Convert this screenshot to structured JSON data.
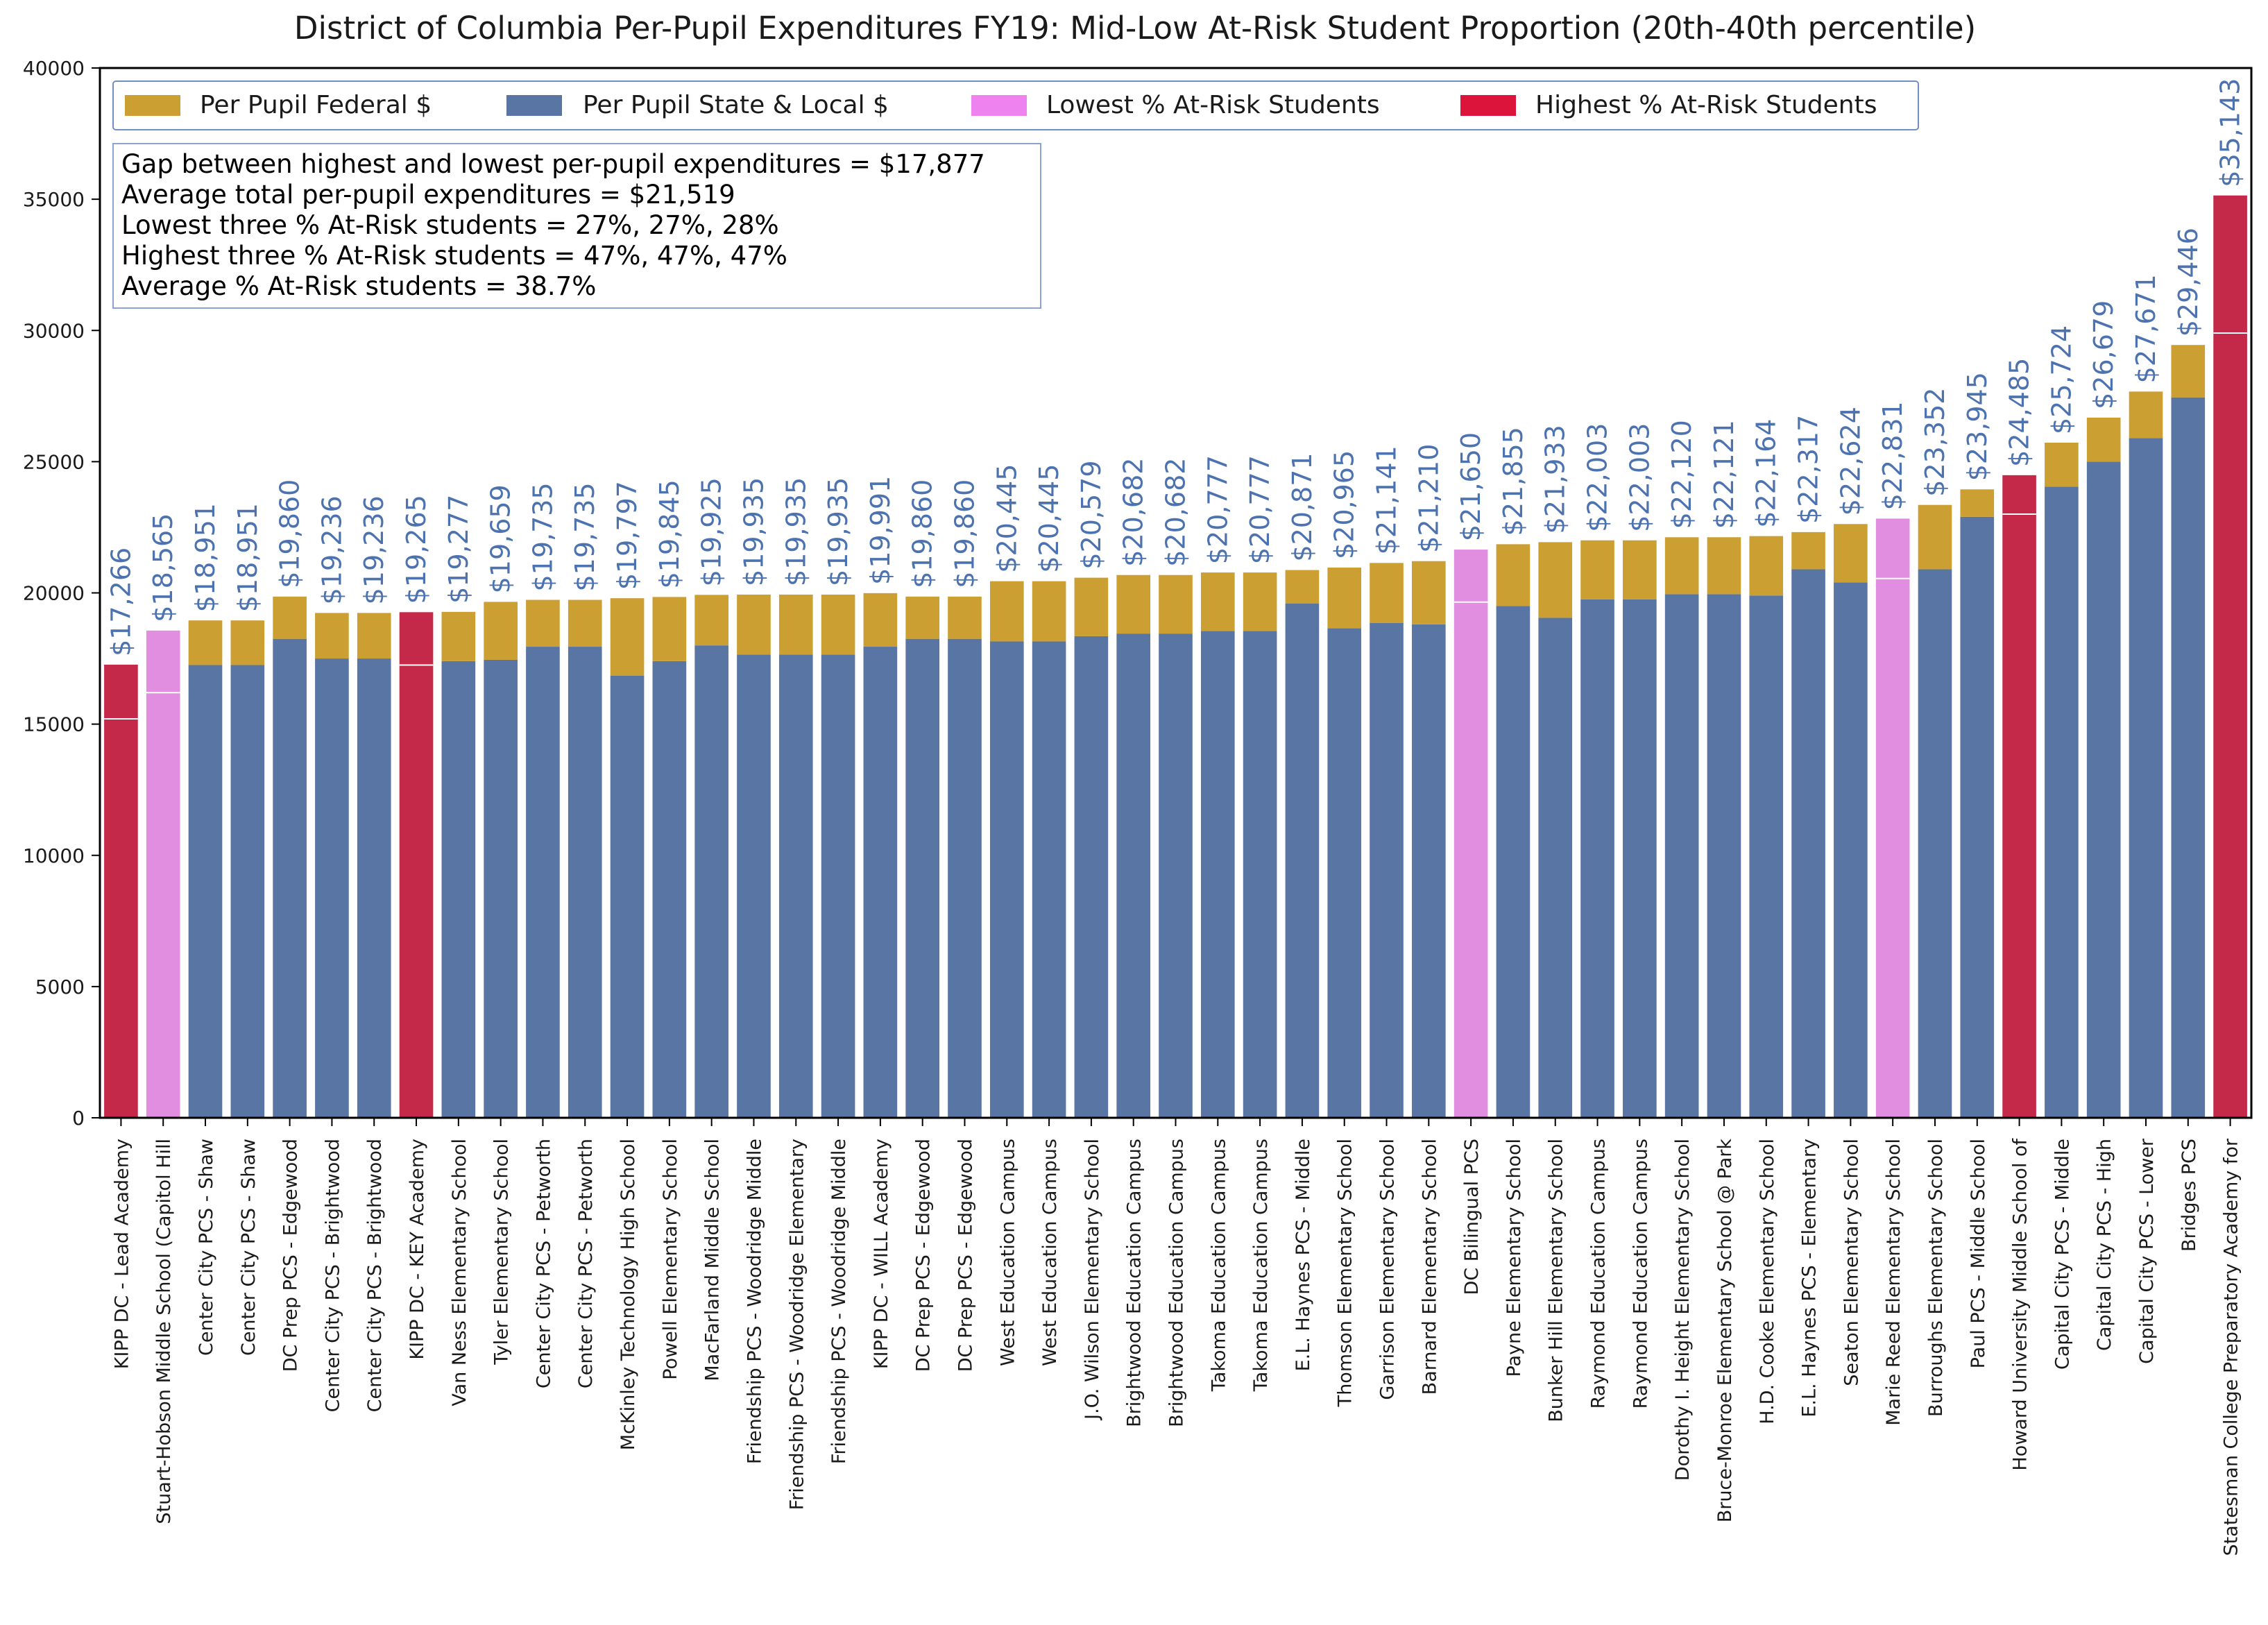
{
  "colors": {
    "federal": "#cc9f33",
    "state_local": "#5975a4",
    "lowest_at_risk": "#e28ee0",
    "highest_at_risk": "#c4294a",
    "legend_lowest_swatch": "#ee82ee",
    "legend_highest_swatch": "#dc143c",
    "total_label": "#4c72b0",
    "axis": "#000000",
    "box_border": "#6f8fc0"
  },
  "chart_data": {
    "type": "bar",
    "stacked": true,
    "title": "District of Columbia Per-Pupil Expenditures FY19: Mid-Low At-Risk Student Proportion (20th-40th percentile)",
    "xlabel": "",
    "ylabel": "",
    "ylim": [
      0,
      40000
    ],
    "yticks": [
      "0",
      "5000",
      "10000",
      "15000",
      "20000",
      "25000",
      "30000",
      "35000",
      "40000"
    ],
    "grid": false,
    "legend": {
      "position": "top-left",
      "entries": [
        "Per Pupil Federal $",
        "Per Pupil State & Local $",
        "Lowest % At-Risk Students",
        "Highest % At-Risk Students"
      ]
    },
    "annotation_lines": [
      "Gap between highest and lowest per-pupil expenditures = $17,877",
      "Average total per-pupil expenditures = $21,519",
      "Lowest three % At-Risk students = 27%, 27%, 28%",
      "Highest three % At-Risk students = 47%, 47%, 47%",
      "Average % At-Risk students = 38.7%"
    ],
    "categories": [
      "KIPP DC - Lead Academy",
      "Stuart-Hobson Middle School (Capitol Hill",
      "Center City PCS - Shaw",
      "Center City PCS - Shaw",
      "DC Prep PCS - Edgewood",
      "Center City PCS - Brightwood",
      "Center City PCS - Brightwood",
      "KIPP DC - KEY Academy",
      "Van Ness Elementary School",
      "Tyler Elementary School",
      "Center City PCS - Petworth",
      "Center City PCS - Petworth",
      "McKinley Technology High School",
      "Powell Elementary School",
      "MacFarland Middle School",
      "Friendship PCS - Woodridge Middle",
      "Friendship PCS - Woodridge Elementary",
      "Friendship PCS - Woodridge Middle",
      "KIPP DC - WILL Academy",
      "DC Prep PCS - Edgewood",
      "DC Prep PCS - Edgewood",
      "West Education Campus",
      "West Education Campus",
      "J.O. Wilson Elementary School",
      "Brightwood Education Campus",
      "Brightwood Education Campus",
      "Takoma Education Campus",
      "Takoma Education Campus",
      "E.L. Haynes PCS - Middle",
      "Thomson Elementary School",
      "Garrison Elementary School",
      "Barnard Elementary School",
      "DC Bilingual PCS",
      "Payne Elementary School",
      "Bunker Hill Elementary School",
      "Raymond Education Campus",
      "Raymond Education Campus",
      "Dorothy I. Height Elementary School",
      "Bruce-Monroe Elementary School @ Park",
      "H.D. Cooke Elementary School",
      "E.L. Haynes PCS - Elementary",
      "Seaton Elementary School",
      "Marie Reed Elementary School",
      "Burroughs Elementary School",
      "Paul PCS - Middle School",
      "Howard University Middle School of",
      "Capital City PCS - Middle",
      "Capital City PCS - High",
      "Capital City PCS - Lower",
      "Bridges PCS",
      "Statesman College Preparatory Academy for"
    ],
    "series": [
      {
        "name": "Per Pupil State & Local $",
        "values": [
          15200,
          16200,
          17250,
          17250,
          18250,
          17500,
          17500,
          17250,
          17400,
          17450,
          17950,
          17950,
          16850,
          17400,
          18000,
          17650,
          17650,
          17650,
          17950,
          18250,
          18250,
          18150,
          18150,
          18350,
          18450,
          18450,
          18550,
          18550,
          19600,
          18650,
          18850,
          18800,
          19650,
          19500,
          19050,
          19750,
          19750,
          19950,
          19950,
          19900,
          20900,
          20400,
          20550,
          20900,
          22900,
          23000,
          24050,
          25000,
          25900,
          27450,
          29900
        ]
      },
      {
        "name": "Per Pupil Federal $",
        "values": [
          2066,
          2365,
          1701,
          1701,
          1610,
          1736,
          1736,
          2015,
          1877,
          2209,
          1785,
          1785,
          2947,
          2445,
          1925,
          2285,
          2285,
          2285,
          2041,
          1610,
          1610,
          2295,
          2295,
          2229,
          2232,
          2232,
          2227,
          2227,
          1271,
          2315,
          2291,
          2410,
          2000,
          2355,
          2883,
          2253,
          2253,
          2170,
          2171,
          2264,
          1417,
          2224,
          2281,
          2452,
          1045,
          1485,
          1674,
          1679,
          1771,
          1996,
          5243
        ]
      }
    ],
    "totals": [
      17266,
      18565,
      18951,
      18951,
      19860,
      19236,
      19236,
      19265,
      19277,
      19659,
      19735,
      19735,
      19797,
      19845,
      19925,
      19935,
      19935,
      19935,
      19991,
      19860,
      19860,
      20445,
      20445,
      20579,
      20682,
      20682,
      20777,
      20777,
      20871,
      20965,
      21141,
      21210,
      21650,
      21855,
      21933,
      22003,
      22003,
      22120,
      22121,
      22164,
      22317,
      22624,
      22831,
      23352,
      23945,
      24485,
      25724,
      26679,
      27671,
      29446,
      35143
    ],
    "total_labels": [
      "$17,266",
      "$18,565",
      "$18,951",
      "$18,951",
      "$19,860",
      "$19,236",
      "$19,236",
      "$19,265",
      "$19,277",
      "$19,659",
      "$19,735",
      "$19,735",
      "$19,797",
      "$19,845",
      "$19,925",
      "$19,935",
      "$19,935",
      "$19,935",
      "$19,991",
      "$19,860",
      "$19,860",
      "$20,445",
      "$20,445",
      "$20,579",
      "$20,682",
      "$20,682",
      "$20,777",
      "$20,777",
      "$20,871",
      "$20,965",
      "$21,141",
      "$21,210",
      "$21,650",
      "$21,855",
      "$21,933",
      "$22,003",
      "$22,003",
      "$22,120",
      "$22,121",
      "$22,164",
      "$22,317",
      "$22,624",
      "$22,831",
      "$23,352",
      "$23,945",
      "$24,485",
      "$25,724",
      "$26,679",
      "$27,671",
      "$29,446",
      "$35,143"
    ],
    "highlight": [
      "highest",
      "lowest",
      "",
      "",
      "",
      "",
      "",
      "highest",
      "",
      "",
      "",
      "",
      "",
      "",
      "",
      "",
      "",
      "",
      "",
      "",
      "",
      "",
      "",
      "",
      "",
      "",
      "",
      "",
      "",
      "",
      "",
      "",
      "lowest",
      "",
      "",
      "",
      "",
      "",
      "",
      "",
      "",
      "",
      "lowest",
      "",
      "",
      "highest",
      "",
      "",
      "",
      "",
      "highest"
    ]
  }
}
